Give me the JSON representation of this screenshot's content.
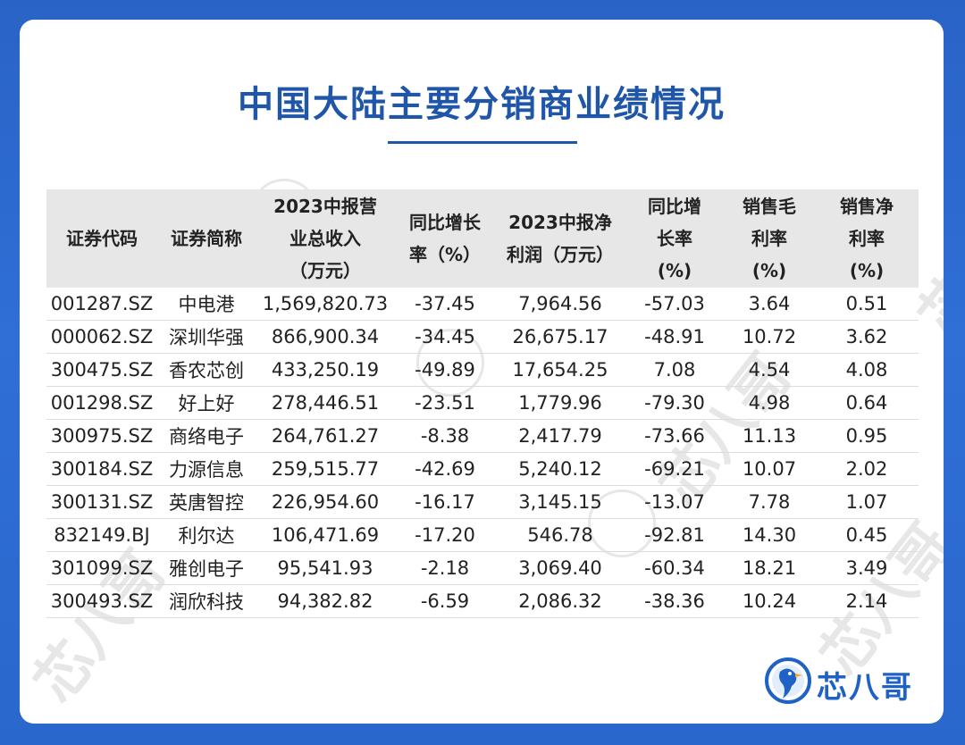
{
  "title": "中国大陆主要分销商业绩情况",
  "table": {
    "headers": [
      "证券代码",
      "证券简称",
      "2023中报营业总收入（万元）",
      "同比增长率（%）",
      "2023中报净利润（万元）",
      "同比增长率（%）",
      "销售毛利率（%）",
      "销售净利率（%）"
    ],
    "header_lines": [
      [
        "证券代码"
      ],
      [
        "证券简称"
      ],
      [
        "2023中报营",
        "业总收入",
        "（万元）"
      ],
      [
        "同比增长",
        "率（%）"
      ],
      [
        "2023中报净",
        "利润（万元）"
      ],
      [
        "同比增",
        "长率",
        "(%)"
      ],
      [
        "销售毛",
        "利率",
        "(%)"
      ],
      [
        "销售净",
        "利率",
        "(%)"
      ]
    ],
    "rows": [
      [
        "001287.SZ",
        "中电港",
        "1,569,820.73",
        "-37.45",
        "7,964.56",
        "-57.03",
        "3.64",
        "0.51"
      ],
      [
        "000062.SZ",
        "深圳华强",
        "866,900.34",
        "-34.45",
        "26,675.17",
        "-48.91",
        "10.72",
        "3.62"
      ],
      [
        "300475.SZ",
        "香农芯创",
        "433,250.19",
        "-49.89",
        "17,654.25",
        "7.08",
        "4.54",
        "4.08"
      ],
      [
        "001298.SZ",
        "好上好",
        "278,446.51",
        "-23.51",
        "1,779.96",
        "-79.30",
        "4.98",
        "0.64"
      ],
      [
        "300975.SZ",
        "商络电子",
        "264,761.27",
        "-8.38",
        "2,417.79",
        "-73.66",
        "11.13",
        "0.95"
      ],
      [
        "300184.SZ",
        "力源信息",
        "259,515.77",
        "-42.69",
        "5,240.12",
        "-69.21",
        "10.07",
        "2.02"
      ],
      [
        "300131.SZ",
        "英唐智控",
        "226,954.60",
        "-16.17",
        "3,145.15",
        "-13.07",
        "7.78",
        "1.07"
      ],
      [
        "832149.BJ",
        "利尔达",
        "106,471.69",
        "-17.20",
        "546.78",
        "-92.81",
        "14.30",
        "0.45"
      ],
      [
        "301099.SZ",
        "雅创电子",
        "95,541.93",
        "-2.18",
        "3,069.40",
        "-60.34",
        "18.21",
        "3.49"
      ],
      [
        "300493.SZ",
        "润欣科技",
        "94,382.82",
        "-6.59",
        "2,086.32",
        "-38.36",
        "10.24",
        "2.14"
      ]
    ]
  },
  "logo": {
    "text": "芯八哥",
    "icon": "bird-circle-logo-icon"
  },
  "watermark": {
    "text": "芯八哥"
  },
  "colors": {
    "background": "#2f6fd6",
    "title": "#1f56a8",
    "header_bg": "#e7e7e7",
    "logo": "#1f62c6"
  }
}
